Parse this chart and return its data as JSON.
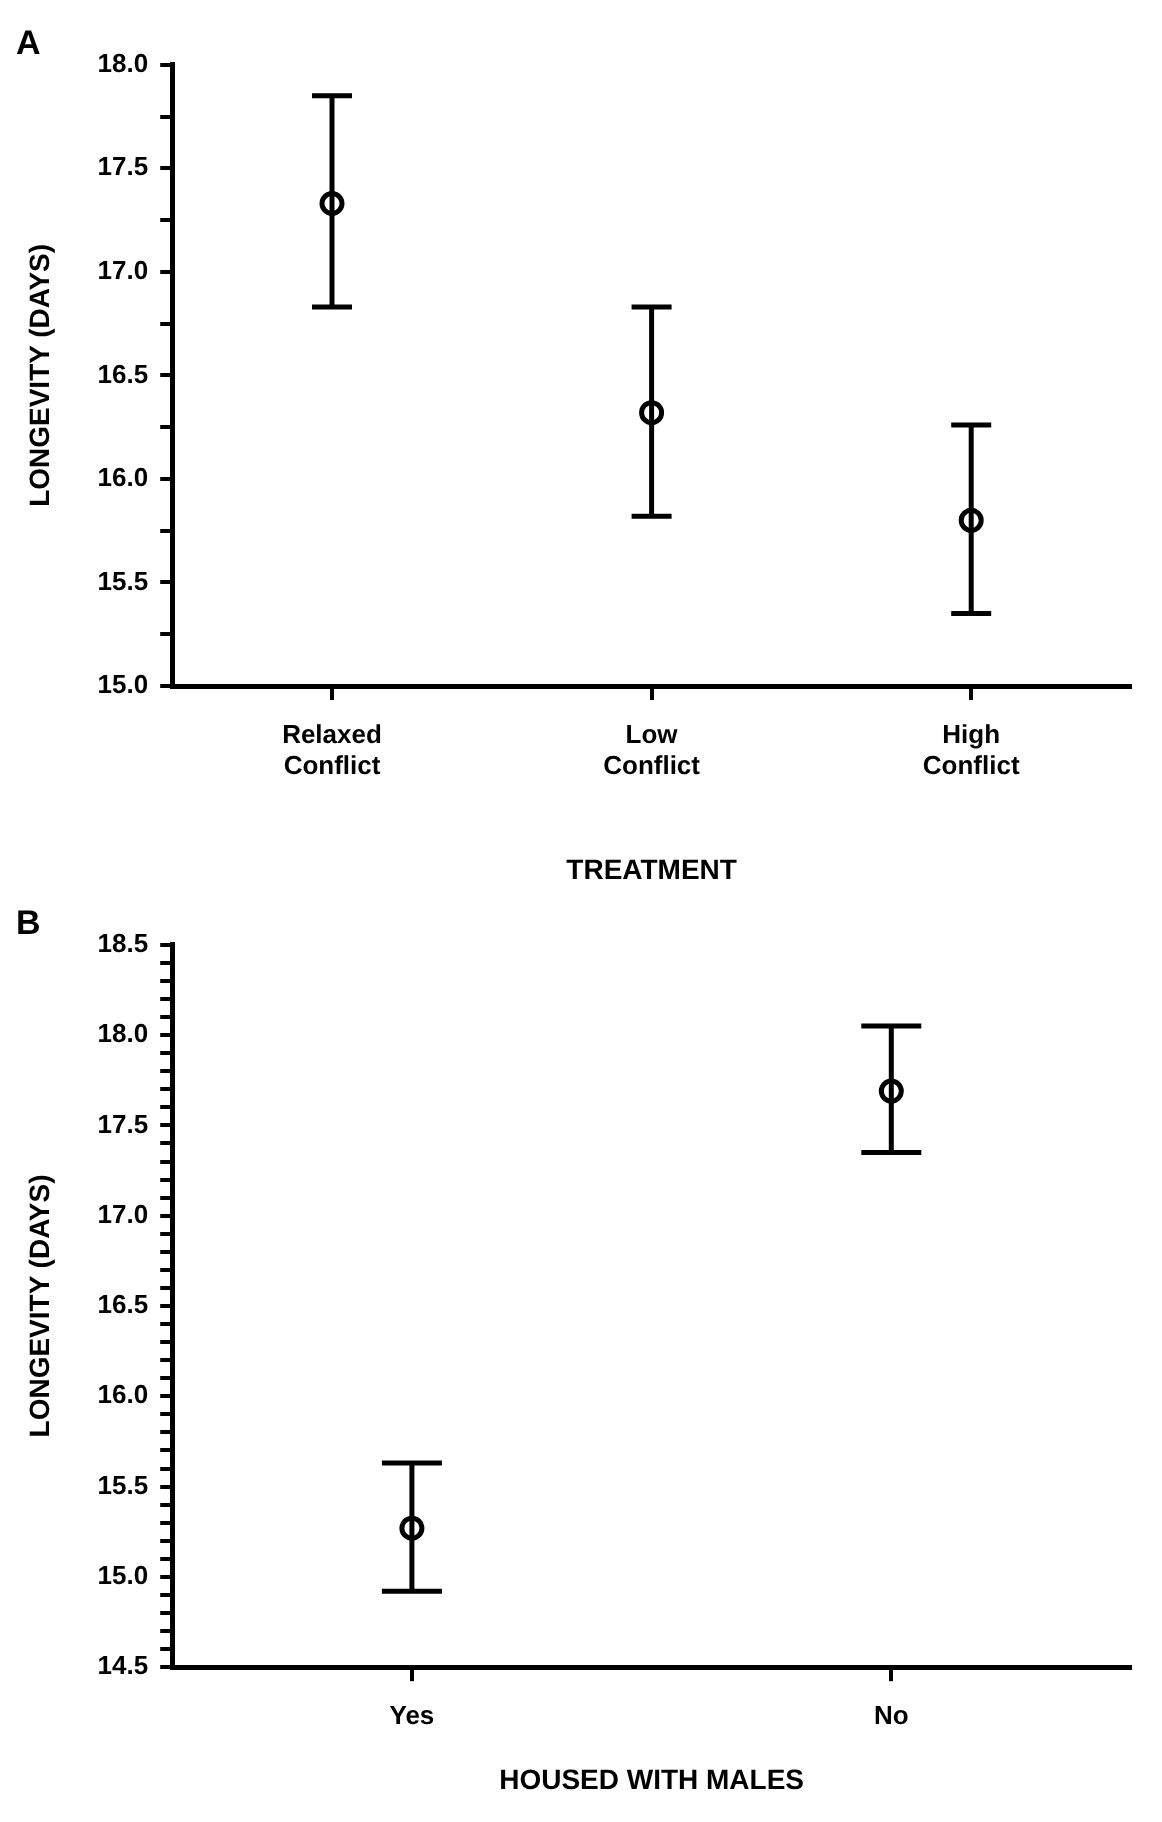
{
  "chart_data": [
    {
      "type": "scatter",
      "title": "A",
      "xlabel": "TREATMENT",
      "ylabel": "LONGEVITY (DAYS)",
      "categories": [
        "Relaxed Conflict",
        "Low Conflict",
        "High Conflict"
      ],
      "series": [
        {
          "color": "#000000",
          "values": [
            17.33,
            16.32,
            15.8
          ],
          "errors": [
            [
              16.83,
              17.85
            ],
            [
              15.82,
              16.83
            ],
            [
              15.35,
              16.26
            ]
          ]
        }
      ],
      "ylim": [
        15,
        18
      ],
      "yticks": [
        {
          "value": 15,
          "label": "15.0"
        },
        {
          "value": 15.25,
          "label": null
        },
        {
          "value": 15.5,
          "label": "15.5"
        },
        {
          "value": 15.75,
          "label": null
        },
        {
          "value": 16,
          "label": "16.0"
        },
        {
          "value": 16.25,
          "label": null
        },
        {
          "value": 16.5,
          "label": "16.5"
        },
        {
          "value": 16.75,
          "label": null
        },
        {
          "value": 17,
          "label": "17.0"
        },
        {
          "value": 17.25,
          "label": null
        },
        {
          "value": 17.5,
          "label": "17.5"
        },
        {
          "value": 17.75,
          "label": null
        },
        {
          "value": 18,
          "label": "18.0"
        }
      ],
      "grid": false,
      "legend": false,
      "marker": "circle"
    },
    {
      "type": "scatter",
      "title": "B",
      "xlabel": "HOUSED WITH MALES",
      "ylabel": "LONGEVITY (DAYS)",
      "categories": [
        "Yes",
        "No"
      ],
      "series": [
        {
          "color": "#000000",
          "values": [
            15.27,
            17.69
          ],
          "errors": [
            [
              14.92,
              15.63
            ],
            [
              17.35,
              18.05
            ]
          ]
        }
      ],
      "ylim": [
        14.5,
        18.5
      ],
      "yticks": [
        {
          "value": 14.5,
          "label": "14.5"
        },
        {
          "value": 14.6,
          "label": null
        },
        {
          "value": 14.7,
          "label": null
        },
        {
          "value": 14.8,
          "label": null
        },
        {
          "value": 14.9,
          "label": null
        },
        {
          "value": 15,
          "label": "15.0"
        },
        {
          "value": 15.1,
          "label": null
        },
        {
          "value": 15.2,
          "label": null
        },
        {
          "value": 15.3,
          "label": null
        },
        {
          "value": 15.4,
          "label": null
        },
        {
          "value": 15.5,
          "label": "15.5"
        },
        {
          "value": 15.6,
          "label": null
        },
        {
          "value": 15.7,
          "label": null
        },
        {
          "value": 15.8,
          "label": null
        },
        {
          "value": 15.9,
          "label": null
        },
        {
          "value": 16,
          "label": "16.0"
        },
        {
          "value": 16.1,
          "label": null
        },
        {
          "value": 16.2,
          "label": null
        },
        {
          "value": 16.3,
          "label": null
        },
        {
          "value": 16.4,
          "label": null
        },
        {
          "value": 16.5,
          "label": "16.5"
        },
        {
          "value": 16.6,
          "label": null
        },
        {
          "value": 16.7,
          "label": null
        },
        {
          "value": 16.8,
          "label": null
        },
        {
          "value": 16.9,
          "label": null
        },
        {
          "value": 17,
          "label": "17.0"
        },
        {
          "value": 17.1,
          "label": null
        },
        {
          "value": 17.2,
          "label": null
        },
        {
          "value": 17.3,
          "label": null
        },
        {
          "value": 17.4,
          "label": null
        },
        {
          "value": 17.5,
          "label": "17.5"
        },
        {
          "value": 17.6,
          "label": null
        },
        {
          "value": 17.7,
          "label": null
        },
        {
          "value": 17.8,
          "label": null
        },
        {
          "value": 17.9,
          "label": null
        },
        {
          "value": 18,
          "label": "18.0"
        },
        {
          "value": 18.1,
          "label": null
        },
        {
          "value": 18.2,
          "label": null
        },
        {
          "value": 18.3,
          "label": null
        },
        {
          "value": 18.4,
          "label": null
        },
        {
          "value": 18.5,
          "label": "18.5"
        }
      ],
      "grid": false,
      "legend": false,
      "marker": "circle"
    }
  ]
}
